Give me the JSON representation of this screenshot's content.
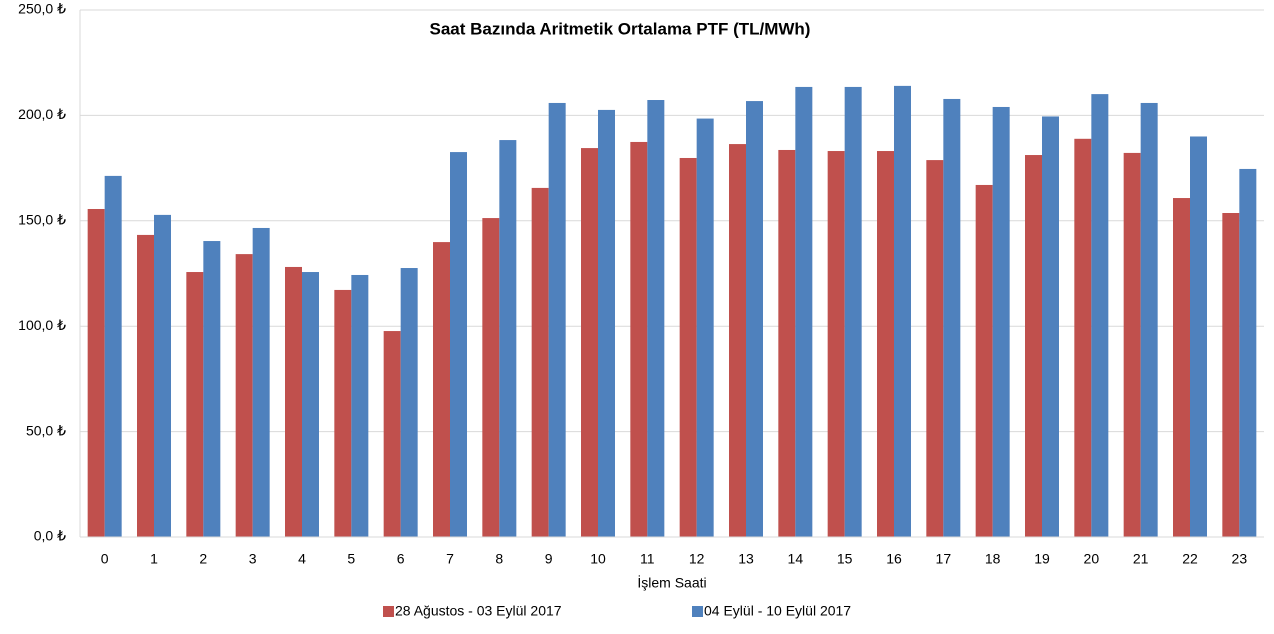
{
  "chart_data": {
    "type": "bar",
    "title": "Saat Bazında Aritmetik Ortalama PTF (TL/MWh)",
    "x_label": "İşlem Saati",
    "categories": [
      "0",
      "1",
      "2",
      "3",
      "4",
      "5",
      "6",
      "7",
      "8",
      "9",
      "10",
      "11",
      "12",
      "13",
      "14",
      "15",
      "16",
      "17",
      "18",
      "19",
      "20",
      "21",
      "22",
      "23"
    ],
    "series": [
      {
        "name": "28 Ağustos - 03 Eylül 2017",
        "color": "#c0504d",
        "values": [
          155.6,
          143.3,
          125.7,
          134.2,
          128.1,
          117.2,
          97.7,
          139.9,
          151.3,
          165.6,
          184.5,
          187.4,
          179.8,
          186.4,
          183.6,
          183.1,
          183.1,
          178.8,
          167.0,
          181.2,
          188.9,
          182.2,
          160.8,
          153.7
        ]
      },
      {
        "name": "04 Eylül - 10 Eylül 2017",
        "color": "#4f81bd",
        "values": [
          171.3,
          152.8,
          140.4,
          146.6,
          125.7,
          124.3,
          127.6,
          182.6,
          188.3,
          205.9,
          202.6,
          207.3,
          198.5,
          206.8,
          213.5,
          213.5,
          214.0,
          207.8,
          204.0,
          199.5,
          210.1,
          205.9,
          190.0,
          174.6
        ]
      }
    ],
    "ylim": [
      0,
      250
    ],
    "yticks": [
      {
        "value": 0,
        "label": "0,0 ₺"
      },
      {
        "value": 50,
        "label": "50,0 ₺"
      },
      {
        "value": 100,
        "label": "100,0 ₺"
      },
      {
        "value": 150,
        "label": "150,0 ₺"
      },
      {
        "value": 200,
        "label": "200,0 ₺"
      },
      {
        "value": 250,
        "label": "250,0 ₺"
      }
    ],
    "grid": true,
    "legend": "bottom"
  }
}
